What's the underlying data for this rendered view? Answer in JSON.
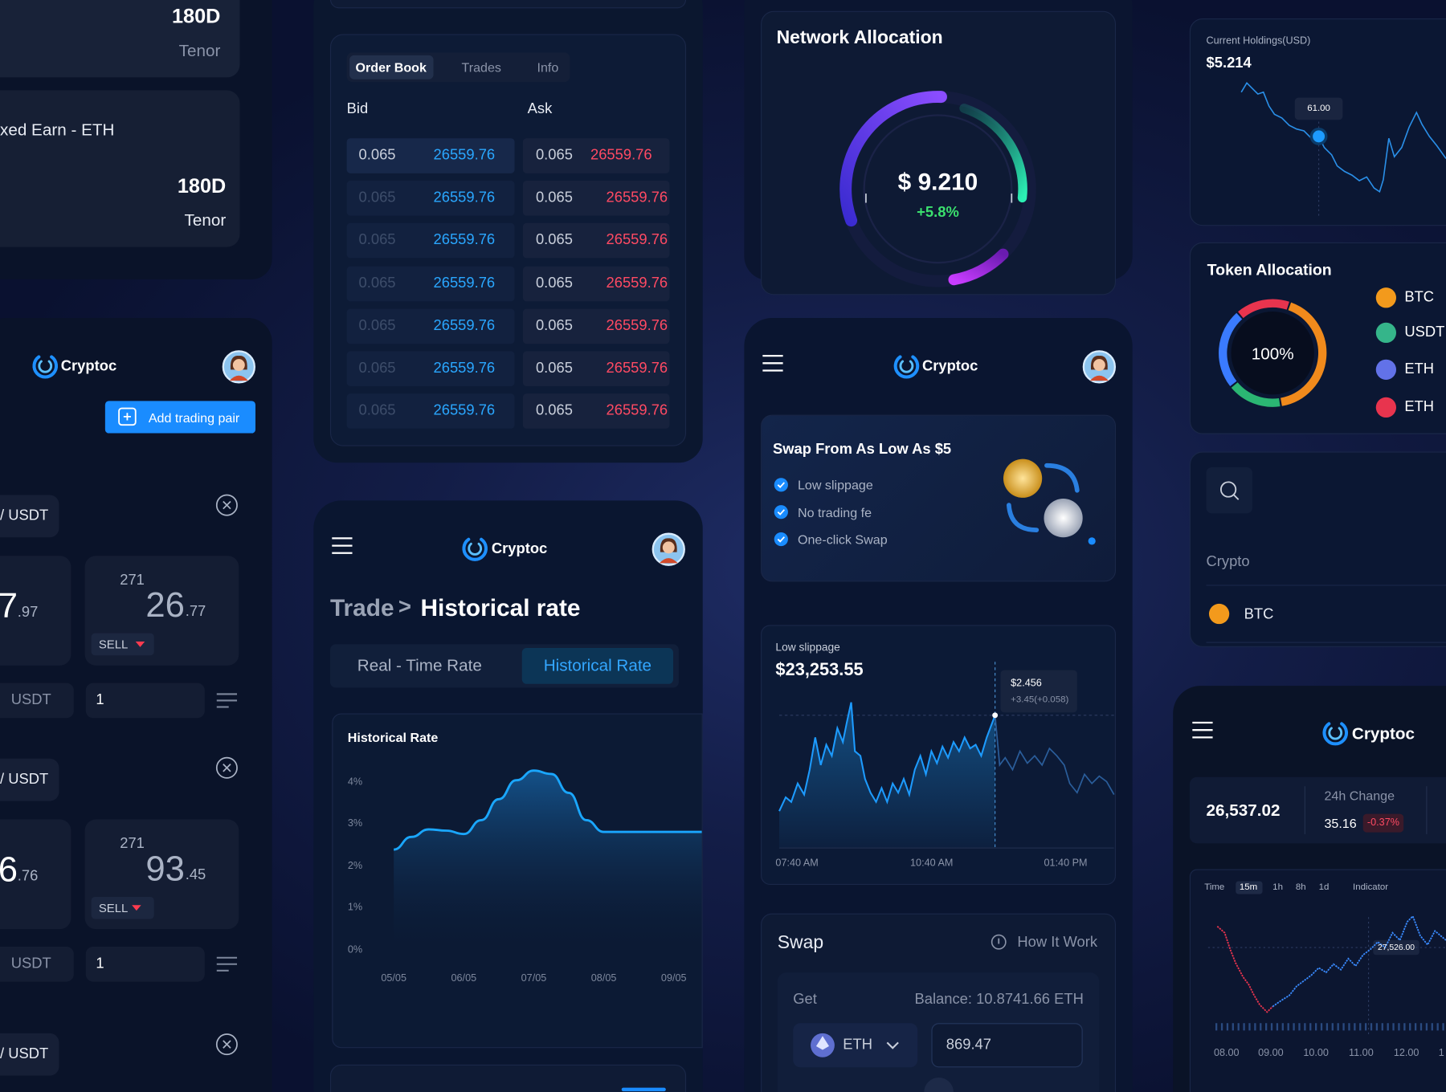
{
  "earn_card": {
    "tenor_1": "180D",
    "tenor_1_label": "Tenor",
    "product": "xed Earn - ETH",
    "tenor_2": "180D",
    "tenor_2_label": "Tenor"
  },
  "trading_pairs_app": {
    "brand": "Cryptoc",
    "add_button": "Add trading pair",
    "pairs": [
      {
        "pair": "/ USDT",
        "price_int": "7",
        "price_dec": ".97",
        "count": "271",
        "amount_int": "26",
        "amount_dec": ".77",
        "side": "SELL",
        "currency": "USDT",
        "quantity": "1"
      },
      {
        "pair": "/ USDT",
        "price_int": "6",
        "price_dec": ".76",
        "count": "271",
        "amount_int": "93",
        "amount_dec": ".45",
        "side": "SELL",
        "currency": "USDT",
        "quantity": "1"
      },
      {
        "pair": "/ USDT"
      }
    ]
  },
  "order_book": {
    "tabs": [
      "Order Book",
      "Trades",
      "Info"
    ],
    "bid_header": "Bid",
    "ask_header": "Ask",
    "rows": [
      [
        "0.065",
        "26559.76",
        "0.065",
        "26559.76"
      ],
      [
        "0.065",
        "26559.76",
        "0.065",
        "26559.76"
      ],
      [
        "0.065",
        "26559.76",
        "0.065",
        "26559.76"
      ],
      [
        "0.065",
        "26559.76",
        "0.065",
        "26559.76"
      ],
      [
        "0.065",
        "26559.76",
        "0.065",
        "26559.76"
      ],
      [
        "0.065",
        "26559.76",
        "0.065",
        "26559.76"
      ],
      [
        "0.065",
        "26559.76",
        "0.065",
        "26559.76"
      ]
    ]
  },
  "historical_app": {
    "brand": "Cryptoc",
    "breadcrumb_parent": "Trade",
    "breadcrumb_separator": ">",
    "breadcrumb_current": "Historical rate",
    "tabs": [
      "Real - Time Rate",
      "Historical Rate"
    ],
    "chart_data": {
      "type": "area",
      "title": "Historical Rate",
      "color": "#1aa7ff",
      "x": [
        0,
        0.25,
        0.5,
        0.75,
        1,
        1.25,
        1.5,
        1.75,
        2,
        2.25,
        2.5,
        2.75,
        3,
        3.5,
        4,
        4.4
      ],
      "values": [
        2.4,
        2.7,
        2.88,
        2.85,
        2.77,
        3.1,
        3.6,
        4.05,
        4.28,
        4.2,
        3.75,
        3.1,
        2.82,
        2.82,
        2.82,
        2.82
      ],
      "xlim": [
        0,
        4.4
      ],
      "ylim": [
        0,
        4.5
      ],
      "xticks": [
        {
          "value": 0,
          "label": "05/05"
        },
        {
          "value": 1,
          "label": "06/05"
        },
        {
          "value": 2,
          "label": "07/05"
        },
        {
          "value": 3,
          "label": "08/05"
        },
        {
          "value": 4,
          "label": "09/05"
        }
      ],
      "yticks": [
        {
          "value": 0,
          "label": "0%"
        },
        {
          "value": 1,
          "label": "1%"
        },
        {
          "value": 2,
          "label": "2%"
        },
        {
          "value": 3,
          "label": "3%"
        },
        {
          "value": 4,
          "label": "4%"
        }
      ]
    }
  },
  "network_allocation": {
    "title": "Network Allocation",
    "value": "$ 9.210",
    "change": "+5.8%"
  },
  "swap_app": {
    "brand": "Cryptoc",
    "promo": {
      "title": "Swap From As Low As $5",
      "features": [
        "Low slippage",
        "No trading fe",
        "One-click Swap"
      ]
    },
    "price_card": {
      "label": "Low slippage",
      "price": "$23,253.55",
      "tooltip_price": "$2.456",
      "tooltip_change": "+3.45(+0.058)",
      "times": [
        "07:40 AM",
        "10:40 AM",
        "01:40 PM"
      ]
    },
    "swap": {
      "title": "Swap",
      "help": "How It Work",
      "get_label": "Get",
      "balance": "Balance: 10.8741.66 ETH",
      "token": "ETH",
      "amount": "869.47"
    }
  },
  "holdings": {
    "title": "Current Holdings(USD)",
    "value": "$5.214",
    "tooltip": "61.00"
  },
  "token_allocation": {
    "title": "Token Allocation",
    "center": "100%",
    "tokens": [
      "BTC",
      "USDT",
      "ETH",
      "ETH"
    ]
  },
  "search_card": {
    "column": "Crypto",
    "token": "BTC"
  },
  "market_app": {
    "brand": "Cryptoc",
    "price": "26,537.02",
    "change_label": "24h Change",
    "change": "35.16",
    "change_pct": "-0.37%",
    "toolbar": [
      "Time",
      "15m",
      "1h",
      "8h",
      "1d",
      "Indicator"
    ],
    "tooltip": "27,526.00",
    "times": [
      "08.00",
      "09.00",
      "10.00",
      "11.00",
      "12.00",
      "1"
    ]
  }
}
